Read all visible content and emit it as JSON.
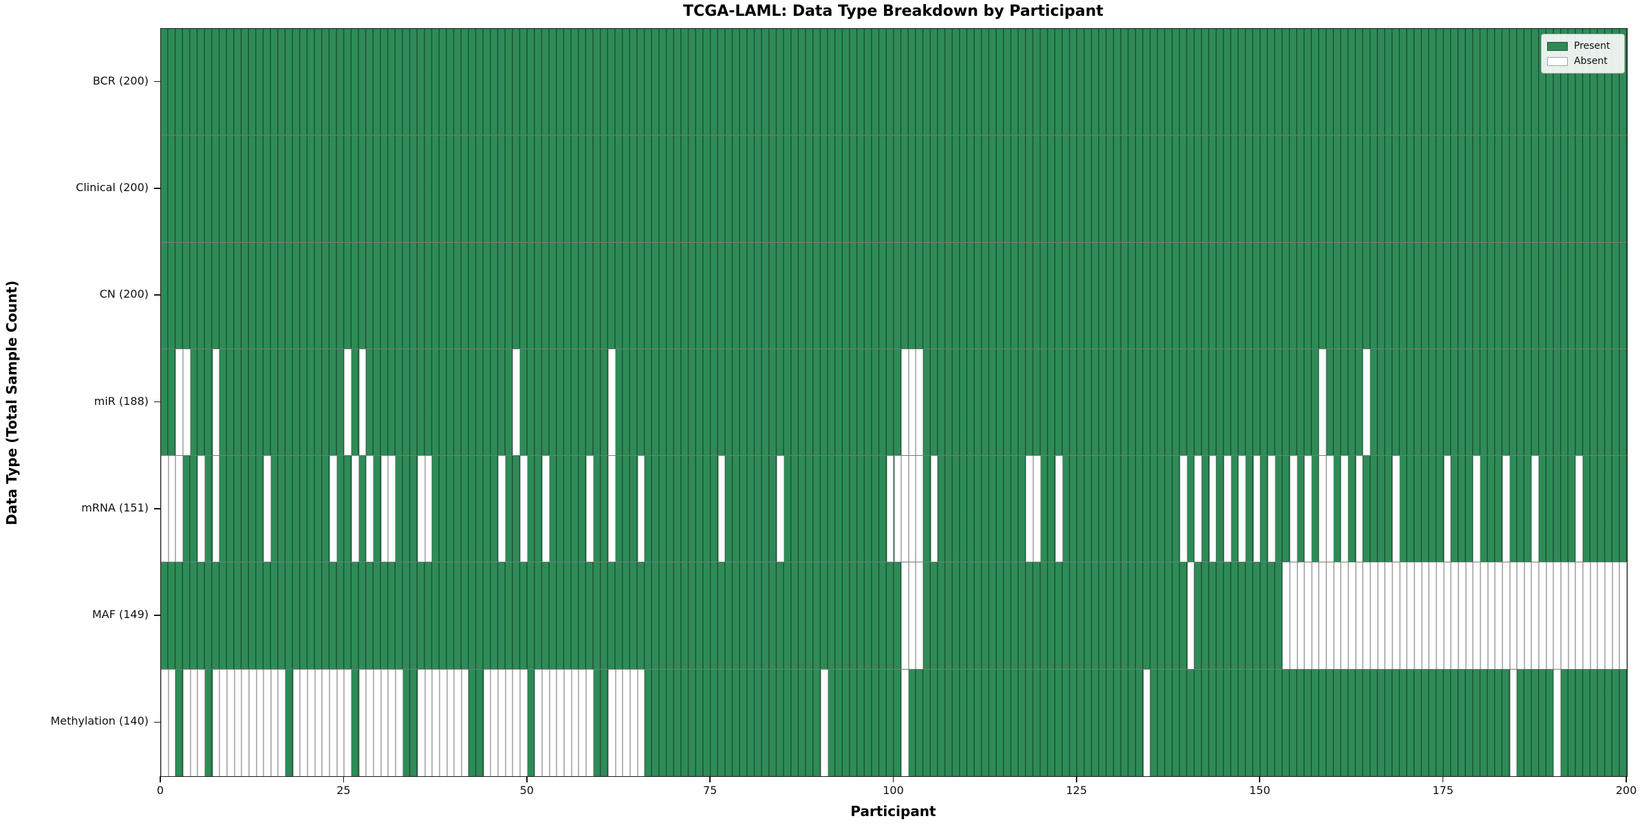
{
  "chart_data": {
    "type": "heatmap",
    "title": "TCGA-LAML: Data Type Breakdown by Participant",
    "xlabel": "Participant",
    "ylabel": "Data Type (Total Sample Count)",
    "x_min": 0,
    "x_max": 200,
    "x_ticks": [
      0,
      25,
      50,
      75,
      100,
      125,
      150,
      175,
      200
    ],
    "grid": "cell-borders",
    "legend": {
      "position": "upper right",
      "present_label": "Present",
      "absent_label": "Absent"
    },
    "colors": {
      "present": "#2e8b57",
      "absent": "#ffffff",
      "cell_border_on_green": "rgba(10,25,15,0.50)",
      "cell_border_on_white": "#b6b6b6",
      "row_divider": "rgba(50,50,50,0.65)",
      "spine": "#1a1a1a",
      "legend_border": "#b0b0b0"
    },
    "rows": [
      {
        "label": "BCR (200)",
        "name": "BCR",
        "total_samples": 200,
        "absent_participants": []
      },
      {
        "label": "Clinical (200)",
        "name": "Clinical",
        "total_samples": 200,
        "absent_participants": []
      },
      {
        "label": "CN (200)",
        "name": "CN",
        "total_samples": 200,
        "absent_participants": []
      },
      {
        "label": "miR (188)",
        "name": "miR",
        "total_samples": 188,
        "absent_participants": [
          2,
          3,
          7,
          25,
          27,
          48,
          61,
          101,
          102,
          103,
          158,
          164
        ]
      },
      {
        "label": "mRNA (151)",
        "name": "mRNA",
        "total_samples": 151,
        "absent_participants": [
          0,
          1,
          2,
          5,
          7,
          14,
          23,
          26,
          28,
          30,
          31,
          35,
          36,
          46,
          49,
          52,
          58,
          61,
          65,
          76,
          84,
          99,
          100,
          101,
          102,
          103,
          105,
          118,
          119,
          122,
          139,
          141,
          143,
          145,
          147,
          149,
          151,
          154,
          156,
          158,
          159,
          161,
          163,
          168,
          175,
          179,
          183,
          187,
          193
        ]
      },
      {
        "label": "MAF (149)",
        "name": "MAF",
        "total_samples": 149,
        "absent_participants": [
          101,
          102,
          103,
          140,
          153,
          154,
          155,
          156,
          157,
          158,
          159,
          160,
          161,
          162,
          163,
          164,
          165,
          166,
          167,
          168,
          169,
          170,
          171,
          172,
          173,
          174,
          175,
          176,
          177,
          178,
          179,
          180,
          181,
          182,
          183,
          184,
          185,
          186,
          187,
          188,
          189,
          190,
          191,
          192,
          193,
          194,
          195,
          196,
          197,
          198,
          199
        ]
      },
      {
        "label": "Methylation (140)",
        "name": "Methylation",
        "total_samples": 140,
        "absent_participants": [
          0,
          1,
          3,
          4,
          5,
          7,
          8,
          9,
          10,
          11,
          12,
          13,
          14,
          15,
          16,
          18,
          19,
          20,
          21,
          22,
          23,
          24,
          25,
          27,
          28,
          29,
          30,
          31,
          32,
          35,
          36,
          37,
          38,
          39,
          40,
          41,
          44,
          45,
          46,
          47,
          48,
          49,
          51,
          52,
          53,
          54,
          55,
          56,
          57,
          58,
          61,
          62,
          63,
          64,
          65,
          90,
          101,
          134,
          184,
          190
        ]
      }
    ]
  }
}
